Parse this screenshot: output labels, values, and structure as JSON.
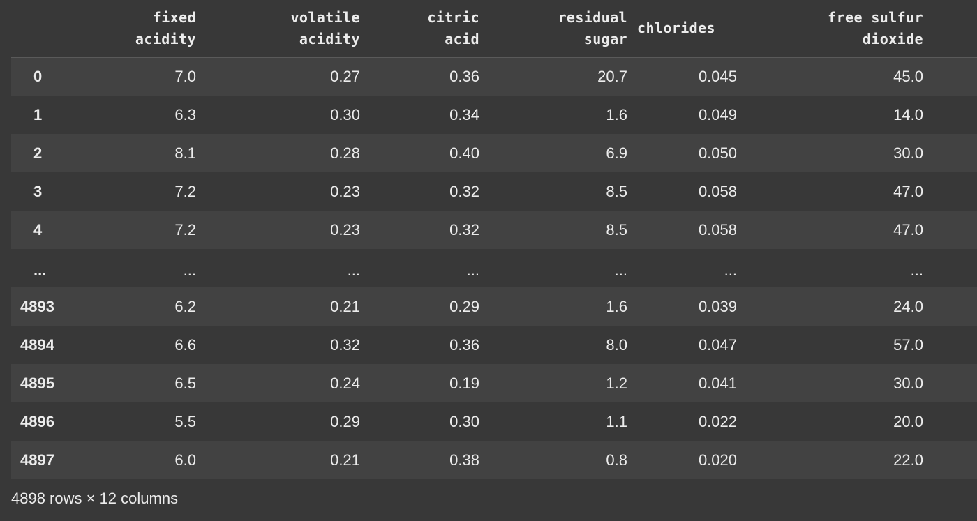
{
  "table": {
    "columns": [
      "fixed\nacidity",
      "volatile\nacidity",
      "citric\nacid",
      "residual\nsugar",
      "chlorides",
      "free sulfur\ndioxide"
    ],
    "rows": [
      {
        "index": "0",
        "values": [
          "7.0",
          "0.27",
          "0.36",
          "20.7",
          "0.045",
          "45.0"
        ]
      },
      {
        "index": "1",
        "values": [
          "6.3",
          "0.30",
          "0.34",
          "1.6",
          "0.049",
          "14.0"
        ]
      },
      {
        "index": "2",
        "values": [
          "8.1",
          "0.28",
          "0.40",
          "6.9",
          "0.050",
          "30.0"
        ]
      },
      {
        "index": "3",
        "values": [
          "7.2",
          "0.23",
          "0.32",
          "8.5",
          "0.058",
          "47.0"
        ]
      },
      {
        "index": "4",
        "values": [
          "7.2",
          "0.23",
          "0.32",
          "8.5",
          "0.058",
          "47.0"
        ]
      },
      {
        "index": "...",
        "values": [
          "...",
          "...",
          "...",
          "...",
          "...",
          "..."
        ]
      },
      {
        "index": "4893",
        "values": [
          "6.2",
          "0.21",
          "0.29",
          "1.6",
          "0.039",
          "24.0"
        ]
      },
      {
        "index": "4894",
        "values": [
          "6.6",
          "0.32",
          "0.36",
          "8.0",
          "0.047",
          "57.0"
        ]
      },
      {
        "index": "4895",
        "values": [
          "6.5",
          "0.24",
          "0.19",
          "1.2",
          "0.041",
          "30.0"
        ]
      },
      {
        "index": "4896",
        "values": [
          "5.5",
          "0.29",
          "0.30",
          "1.1",
          "0.022",
          "20.0"
        ]
      },
      {
        "index": "4897",
        "values": [
          "6.0",
          "0.21",
          "0.38",
          "0.8",
          "0.020",
          "22.0"
        ]
      }
    ],
    "summary": "4898 rows × 12 columns"
  }
}
